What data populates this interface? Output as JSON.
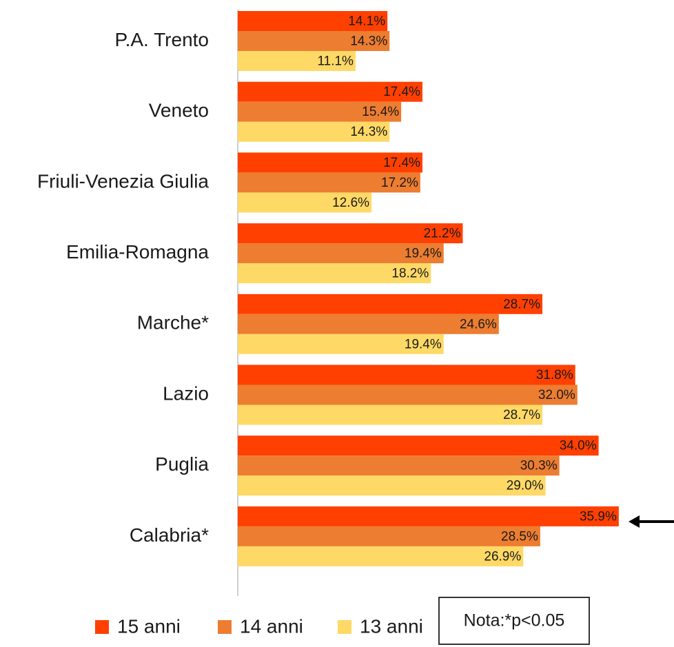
{
  "chart_data": {
    "type": "hbar",
    "categories": [
      "P.A. Trento",
      "Veneto",
      "Friuli-Venezia Giulia",
      "Emilia-Romagna",
      "Marche*",
      "Lazio",
      "Puglia",
      "Calabria*"
    ],
    "series": [
      {
        "name": "15 anni",
        "color": "#ff4000",
        "values": [
          14.1,
          17.4,
          17.4,
          21.2,
          28.7,
          31.8,
          34.0,
          35.9
        ],
        "value_labels": [
          "14.1%",
          "17.4%",
          "17.4%",
          "21.2%",
          "28.7%",
          "31.8%",
          "34.0%",
          "35.9%"
        ]
      },
      {
        "name": "14 anni",
        "color": "#ed7d31",
        "values": [
          14.3,
          15.4,
          17.2,
          19.4,
          24.6,
          32.0,
          30.3,
          28.5
        ],
        "value_labels": [
          "14.3%",
          "15.4%",
          "17.2%",
          "19.4%",
          "24.6%",
          "32.0%",
          "30.3%",
          "28.5%"
        ]
      },
      {
        "name": "13 anni",
        "color": "#ffd966",
        "values": [
          11.1,
          14.3,
          12.6,
          18.2,
          19.4,
          28.7,
          29.0,
          26.9
        ],
        "value_labels": [
          "11.1%",
          "14.3%",
          "12.6%",
          "18.2%",
          "19.4%",
          "28.7%",
          "29.0%",
          "26.9%"
        ]
      }
    ],
    "xlim": [
      0,
      40
    ],
    "annotation": "Nota:*p<0.05"
  }
}
